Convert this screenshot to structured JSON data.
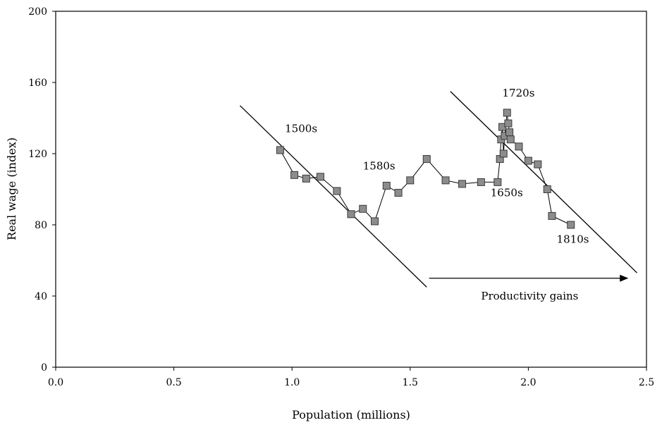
{
  "chart_data": {
    "type": "scatter",
    "xlabel": "Population (millions)",
    "ylabel": "Real wage (index)",
    "xlim": [
      0.0,
      2.5
    ],
    "ylim": [
      0,
      200
    ],
    "x_ticks": [
      "0.0",
      "0.5",
      "1.0",
      "1.5",
      "2.0",
      "2.5"
    ],
    "y_ticks": [
      "0",
      "40",
      "80",
      "120",
      "160",
      "200"
    ],
    "grid": false,
    "legend": "none",
    "marker_color": "#8c8c8c",
    "series": [
      {
        "points": [
          [
            0.95,
            122
          ],
          [
            1.01,
            108
          ],
          [
            1.06,
            106
          ],
          [
            1.12,
            107
          ],
          [
            1.19,
            99
          ],
          [
            1.25,
            86
          ],
          [
            1.3,
            89
          ],
          [
            1.35,
            82
          ],
          [
            1.4,
            102
          ],
          [
            1.45,
            98
          ],
          [
            1.5,
            105
          ],
          [
            1.57,
            117
          ],
          [
            1.65,
            105
          ],
          [
            1.72,
            103
          ],
          [
            1.8,
            104
          ],
          [
            1.87,
            104
          ],
          [
            1.88,
            117
          ],
          [
            1.885,
            128
          ],
          [
            1.89,
            135
          ],
          [
            1.895,
            120
          ],
          [
            1.9,
            130
          ],
          [
            1.91,
            143
          ],
          [
            1.915,
            137
          ],
          [
            1.92,
            132
          ],
          [
            1.925,
            128
          ],
          [
            1.96,
            124
          ],
          [
            2.0,
            116
          ],
          [
            2.04,
            114
          ],
          [
            2.08,
            100
          ],
          [
            2.1,
            85
          ],
          [
            2.18,
            80
          ]
        ]
      }
    ],
    "reference_lines": [
      {
        "x1": 0.78,
        "y1": 147,
        "x2": 1.57,
        "y2": 45
      },
      {
        "x1": 1.67,
        "y1": 155,
        "x2": 2.46,
        "y2": 53
      }
    ],
    "annotations": [
      {
        "text": "1500s",
        "x": 0.97,
        "y": 132
      },
      {
        "text": "1580s",
        "x": 1.3,
        "y": 111
      },
      {
        "text": "1720s",
        "x": 1.89,
        "y": 152
      },
      {
        "text": "1650s",
        "x": 1.84,
        "y": 96
      },
      {
        "text": "1810s",
        "x": 2.12,
        "y": 70
      },
      {
        "text": "Productivity gains",
        "x": 1.8,
        "y": 38
      }
    ],
    "arrow": {
      "x1": 1.58,
      "y1": 50,
      "x2": 2.42,
      "y2": 50
    }
  }
}
